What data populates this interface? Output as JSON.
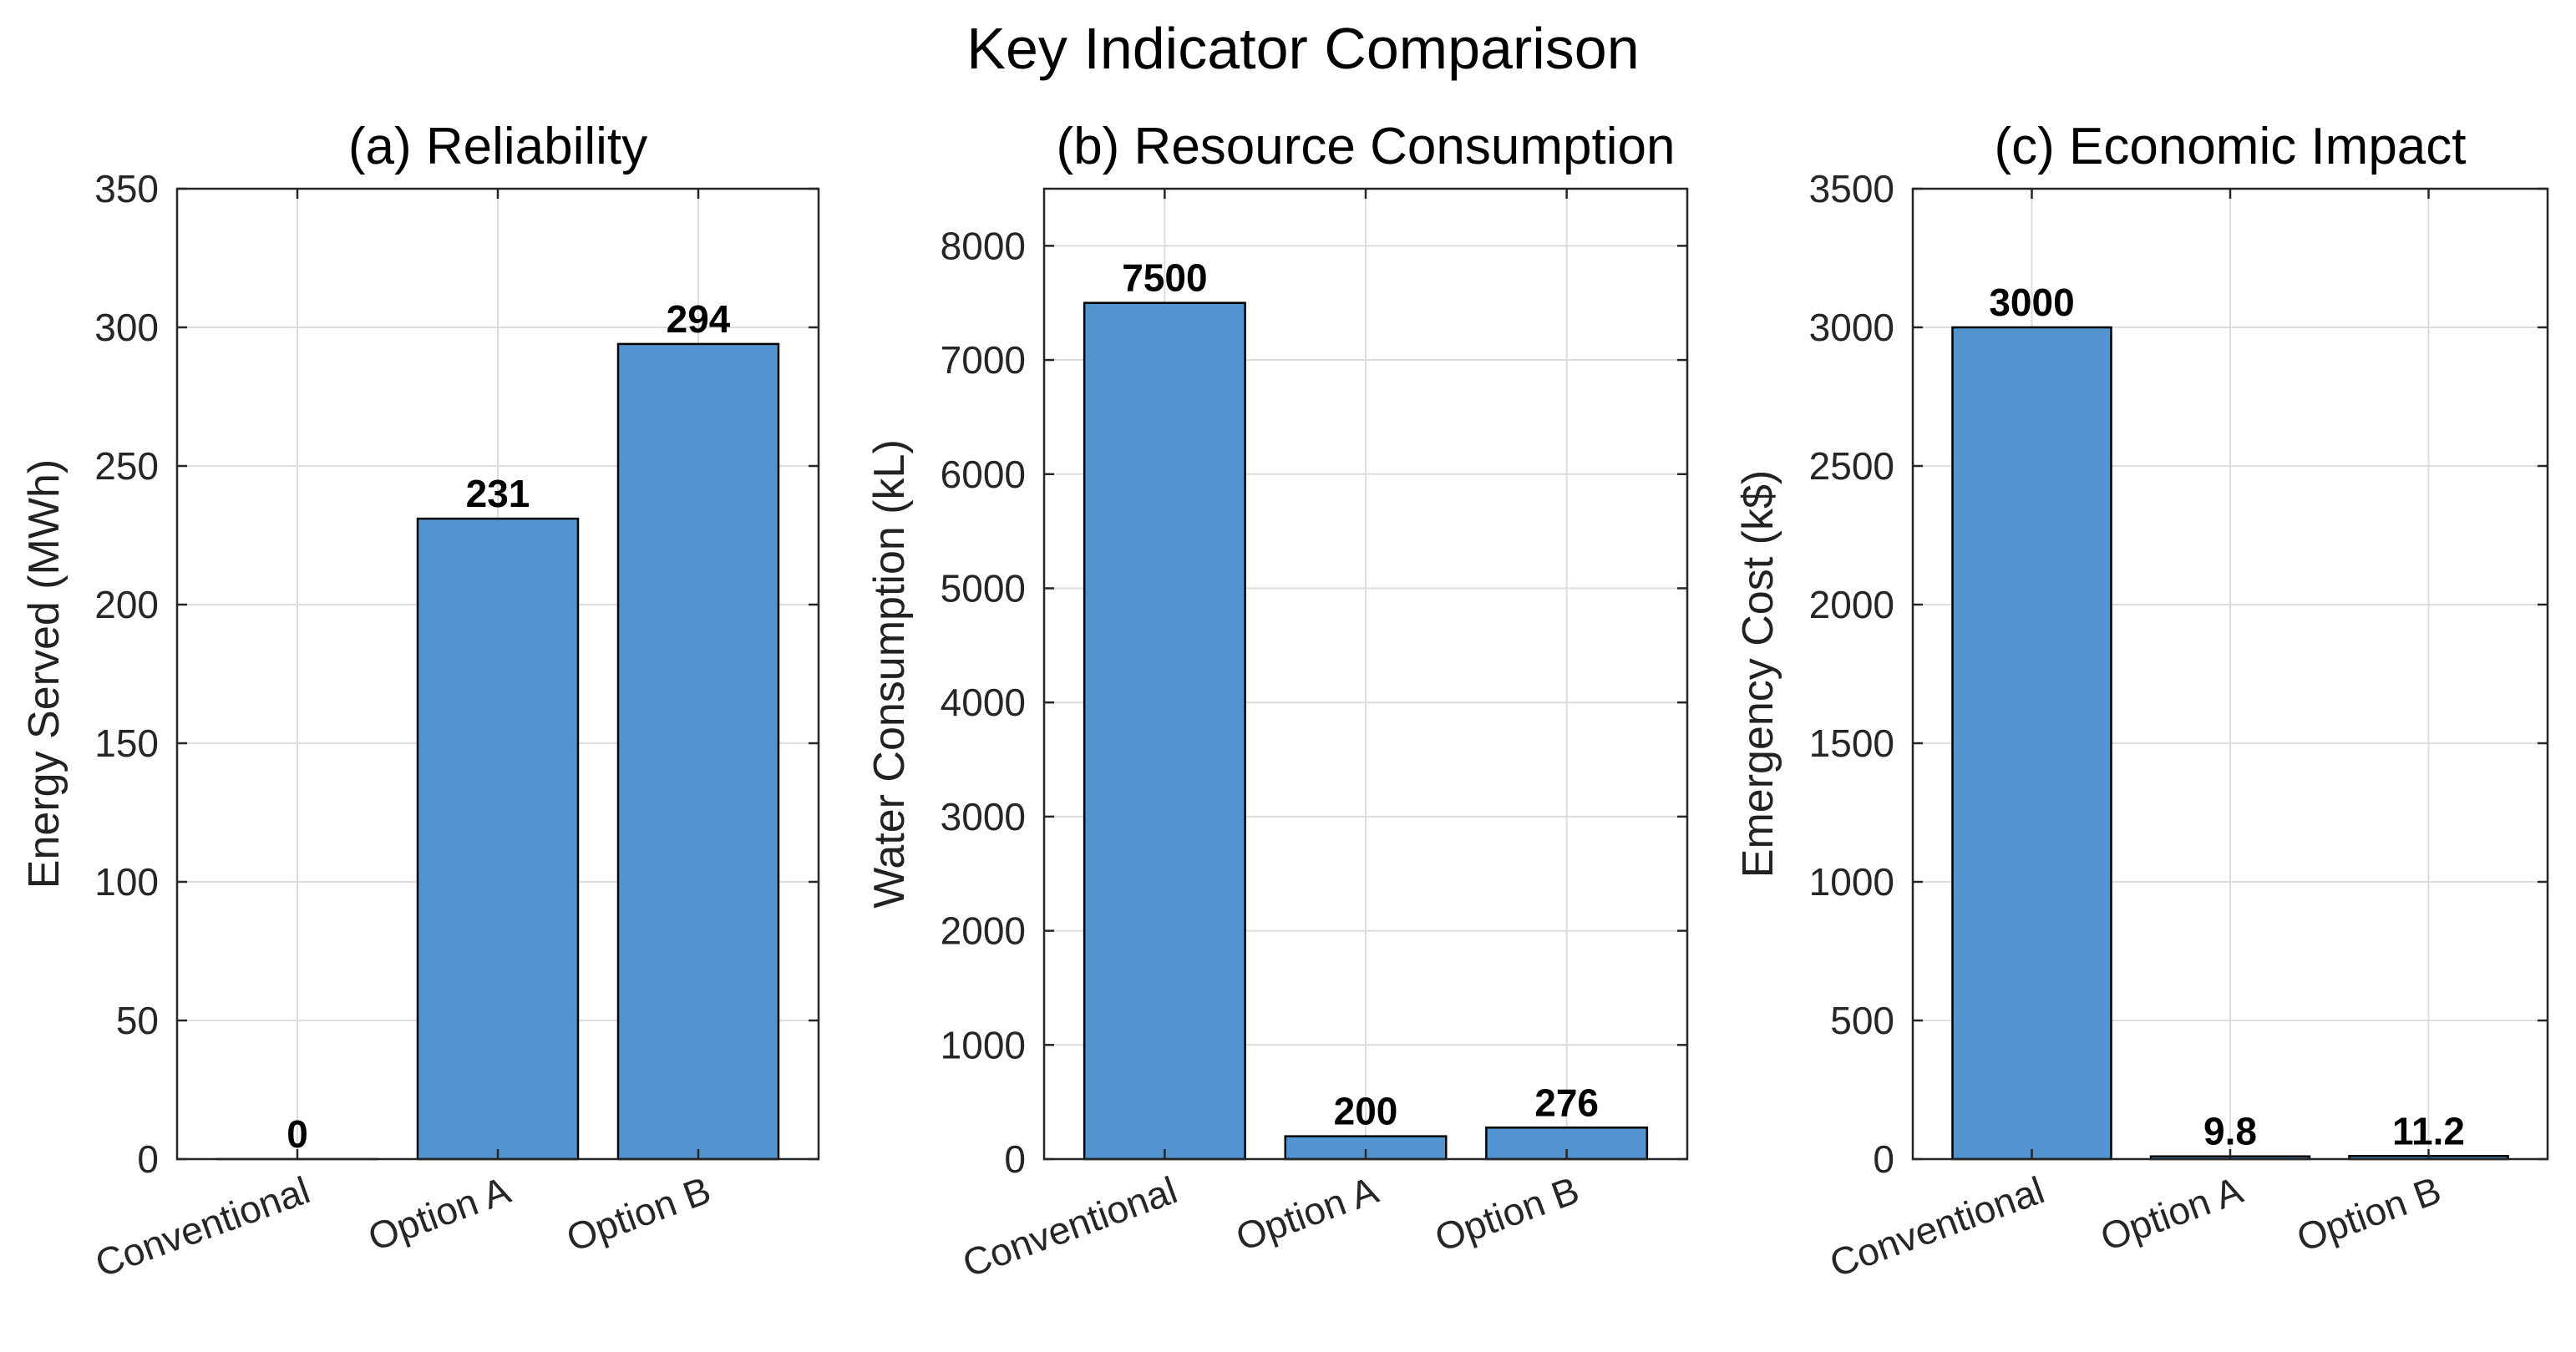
{
  "figure": {
    "title": "Key Indicator Comparison"
  },
  "chart_data": [
    {
      "type": "bar",
      "title": "(a) Reliability",
      "xlabel": "",
      "ylabel": "Energy Served (MWh)",
      "categories": [
        "Conventional",
        "Option A",
        "Option B"
      ],
      "values": [
        0,
        231,
        294
      ],
      "value_labels": [
        "0",
        "231",
        "294"
      ],
      "ylim": [
        0,
        350
      ],
      "yticks": [
        0,
        50,
        100,
        150,
        200,
        250,
        300,
        350
      ],
      "grid": true,
      "bar_color": "#5294d0"
    },
    {
      "type": "bar",
      "title": "(b) Resource Consumption",
      "xlabel": "",
      "ylabel": "Water Consumption (kL)",
      "categories": [
        "Conventional",
        "Option A",
        "Option B"
      ],
      "values": [
        7500,
        200,
        276
      ],
      "value_labels": [
        "7500",
        "200",
        "276"
      ],
      "ylim": [
        0,
        8500
      ],
      "yticks": [
        0,
        1000,
        2000,
        3000,
        4000,
        5000,
        6000,
        7000,
        8000
      ],
      "grid": true,
      "bar_color": "#5294d0"
    },
    {
      "type": "bar",
      "title": "(c) Economic Impact",
      "xlabel": "",
      "ylabel": "Emergency Cost (k$)",
      "categories": [
        "Conventional",
        "Option A",
        "Option B"
      ],
      "values": [
        3000,
        9.8,
        11.2
      ],
      "value_labels": [
        "3000",
        "9.8",
        "11.2"
      ],
      "ylim": [
        0,
        3500
      ],
      "yticks": [
        0,
        500,
        1000,
        1500,
        2000,
        2500,
        3000,
        3500
      ],
      "grid": true,
      "bar_color": "#5294d0"
    }
  ]
}
